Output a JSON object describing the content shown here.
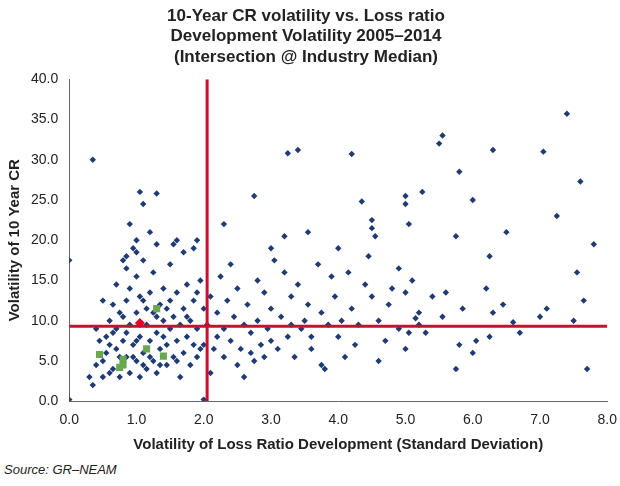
{
  "chart_data": {
    "type": "scatter",
    "title": [
      "10-Year CR volatility vs. Loss ratio",
      "Development Volatility 2005–2014",
      "(Intersection @ Industry Median)"
    ],
    "x_label": "Volatility of Loss Ratio Development (Standard Deviation)",
    "y_label": "Volatility of 10 Year CR",
    "source": "Source: GR–NEAM",
    "xlim": [
      0,
      8
    ],
    "xticks": [
      {
        "value": 0,
        "label": "0.0"
      },
      {
        "value": 1,
        "label": "1.0"
      },
      {
        "value": 2,
        "label": "2.0"
      },
      {
        "value": 3,
        "label": "3.0"
      },
      {
        "value": 4,
        "label": "4.0"
      },
      {
        "value": 5,
        "label": "5.0"
      },
      {
        "value": 6,
        "label": "6.0"
      },
      {
        "value": 7,
        "label": "7.0"
      },
      {
        "value": 8,
        "label": "8.0"
      }
    ],
    "ylim": [
      0,
      40
    ],
    "yticks": [
      {
        "value": 0,
        "label": "0.0"
      },
      {
        "value": 5,
        "label": "5.0"
      },
      {
        "value": 10,
        "label": "10.0"
      },
      {
        "value": 15,
        "label": "15.0"
      },
      {
        "value": 20,
        "label": "20.0"
      },
      {
        "value": 25,
        "label": "25.0"
      },
      {
        "value": 30,
        "label": "30.0"
      },
      {
        "value": 35,
        "label": "35.0"
      },
      {
        "value": 40,
        "label": "40.0"
      }
    ],
    "grid": false,
    "medians": {
      "x": 2.05,
      "y": 9.3,
      "color": "#c8102e"
    },
    "series": [
      {
        "color": "#1f3b73",
        "marker": "diamond",
        "x": [
          0.0,
          0.0,
          0.35,
          1.05,
          1.1,
          1.3,
          1.2,
          1.0,
          0.85,
          0.85,
          0.5,
          0.3,
          0.35,
          0.4,
          2.0,
          1.9,
          1.85,
          2.3,
          2.75,
          3.0,
          3.25,
          3.4,
          3.2,
          3.55,
          4.2,
          4.0,
          4.35,
          4.5,
          4.5,
          4.55,
          4.45,
          5.0,
          5.0,
          5.25,
          5.05,
          5.5,
          5.55,
          5.75,
          5.8,
          6.0,
          6.3,
          6.5,
          6.25,
          7.05,
          7.25,
          7.4,
          7.6,
          7.55,
          7.8,
          7.65,
          7.7,
          7.1,
          7.0,
          6.6,
          6.45,
          6.3,
          6.25,
          6.2,
          6.05,
          5.75,
          5.8,
          5.85,
          5.55,
          5.4,
          5.3,
          5.2,
          5.15,
          5.05,
          5.0,
          5.0,
          5.1,
          5.2,
          4.9,
          4.8,
          4.75,
          4.7,
          4.6,
          4.5,
          4.4,
          4.3,
          4.25,
          4.2,
          4.15,
          4.05,
          4.0,
          3.95,
          3.9,
          3.85,
          3.8,
          3.75,
          3.75,
          3.7,
          3.6,
          3.55,
          3.5,
          3.45,
          3.4,
          3.35,
          3.3,
          3.25,
          3.2,
          3.15,
          3.1,
          3.05,
          3.0,
          2.95,
          2.9,
          2.85,
          2.8,
          2.8,
          2.75,
          2.7,
          2.65,
          2.6,
          2.55,
          2.5,
          2.5,
          2.45,
          2.4,
          2.4,
          2.35,
          2.3,
          2.3,
          2.25,
          2.2,
          2.2,
          2.15,
          2.1,
          2.1,
          2.05,
          2.6,
          2.7,
          2.9,
          3.0,
          3.3,
          3.6,
          4.1,
          4.6,
          4.9,
          5.6,
          6.0,
          6.7,
          7.5,
          0.5,
          0.55,
          0.6,
          0.6,
          0.6,
          0.65,
          0.65,
          0.7,
          0.7,
          0.7,
          0.75,
          0.75,
          0.8,
          0.8,
          0.85,
          0.85,
          0.9,
          0.9,
          0.9,
          0.95,
          0.95,
          1.0,
          1.0,
          1.0,
          1.05,
          1.05,
          1.1,
          1.1,
          1.1,
          1.15,
          1.15,
          1.2,
          1.2,
          1.25,
          1.25,
          1.25,
          1.3,
          1.3,
          1.35,
          1.35,
          1.4,
          1.4,
          1.45,
          1.45,
          1.5,
          1.5,
          1.5,
          1.55,
          1.55,
          1.6,
          1.6,
          1.65,
          1.65,
          1.7,
          1.7,
          1.7,
          1.75,
          1.75,
          1.8,
          1.8,
          1.85,
          1.85,
          1.9,
          1.9,
          1.95,
          1.95,
          0.45,
          0.4,
          0.5,
          0.55,
          0.65,
          0.75,
          0.8,
          0.85,
          0.95,
          1.0,
          1.05,
          1.1,
          1.15,
          1.2,
          1.3,
          1.35,
          1.4,
          1.45,
          1.6,
          1.75,
          1.9,
          2.0,
          2.0,
          0.9,
          1.55,
          1.6,
          1.3,
          1.0
        ],
        "values": [
          17.5,
          0.2,
          30.0,
          26.0,
          24.5,
          25.8,
          21.0,
          20.0,
          18.0,
          16.5,
          12.5,
          3.0,
          2.0,
          4.5,
          0.2,
          20.0,
          19.0,
          22.0,
          25.5,
          19.0,
          30.8,
          31.2,
          20.5,
          21.0,
          30.7,
          19.0,
          24.8,
          22.5,
          21.5,
          20.5,
          18.0,
          25.5,
          24.5,
          26.0,
          22.0,
          32.0,
          33.0,
          20.5,
          28.5,
          25.0,
          31.2,
          21.0,
          18.0,
          31.0,
          23.0,
          35.7,
          27.3,
          16.0,
          19.5,
          12.5,
          4.0,
          11.5,
          10.5,
          9.8,
          12.0,
          11.0,
          8.0,
          14.0,
          7.5,
          4.0,
          7.0,
          11.5,
          10.5,
          13.0,
          8.5,
          11.0,
          10.3,
          8.5,
          6.5,
          13.5,
          15.0,
          9.5,
          16.5,
          14.0,
          12.0,
          7.5,
          10.0,
          13.0,
          14.5,
          9.5,
          7.0,
          11.5,
          16.0,
          10.0,
          8.0,
          13.0,
          15.5,
          9.5,
          4.0,
          4.5,
          11.0,
          17.0,
          6.5,
          12.0,
          10.0,
          9.0,
          14.5,
          5.5,
          13.0,
          8.0,
          16.0,
          10.5,
          6.5,
          17.5,
          11.5,
          9.0,
          13.5,
          7.0,
          10.0,
          15.0,
          5.0,
          8.5,
          12.0,
          9.5,
          6.5,
          14.0,
          4.5,
          10.5,
          7.5,
          17.0,
          12.5,
          9.0,
          5.5,
          15.5,
          8.0,
          11.0,
          6.5,
          13.0,
          3.5,
          9.5,
          3.0,
          6.0,
          5.5,
          7.5,
          9.5,
          8.0,
          5.5,
          5.0,
          9.0,
          13.5,
          6.0,
          8.5,
          10.0,
          5.0,
          8.0,
          10.0,
          7.0,
          3.5,
          12.0,
          4.0,
          6.5,
          9.0,
          14.5,
          3.0,
          11.0,
          7.5,
          17.5,
          12.5,
          5.5,
          9.5,
          3.5,
          14.0,
          7.0,
          19.0,
          11.0,
          5.0,
          15.5,
          8.0,
          3.0,
          12.5,
          6.0,
          17.5,
          9.5,
          4.0,
          13.5,
          7.5,
          11.0,
          5.0,
          16.0,
          8.5,
          3.5,
          12.0,
          6.5,
          10.0,
          14.0,
          7.0,
          4.5,
          9.0,
          12.5,
          17.0,
          5.5,
          10.5,
          7.5,
          13.5,
          3.0,
          9.5,
          6.0,
          11.5,
          18.5,
          8.0,
          14.5,
          4.5,
          10.0,
          7.0,
          12.5,
          5.5,
          9.0,
          15.0,
          6.5,
          7.5,
          9.0,
          3.0,
          6.0,
          8.5,
          5.5,
          10.5,
          8.5,
          5.5,
          7.5,
          13.0,
          4.5,
          11.5,
          5.5,
          10.5,
          4.5,
          8.0,
          11.5,
          5.0,
          10.5,
          13.5,
          11.5,
          7.0,
          22.0,
          19.5,
          20.0,
          19.5,
          18.5
        ]
      },
      {
        "color": "#e4002b",
        "marker": "diamond",
        "x": [
          1.05
        ],
        "values": [
          9.7
        ]
      },
      {
        "color": "#6aa84f",
        "marker": "square",
        "x": [
          0.45,
          0.75,
          0.8,
          0.8,
          1.15,
          1.3,
          1.4
        ],
        "values": [
          5.8,
          4.2,
          5.2,
          4.5,
          6.5,
          11.5,
          5.6
        ]
      }
    ]
  }
}
